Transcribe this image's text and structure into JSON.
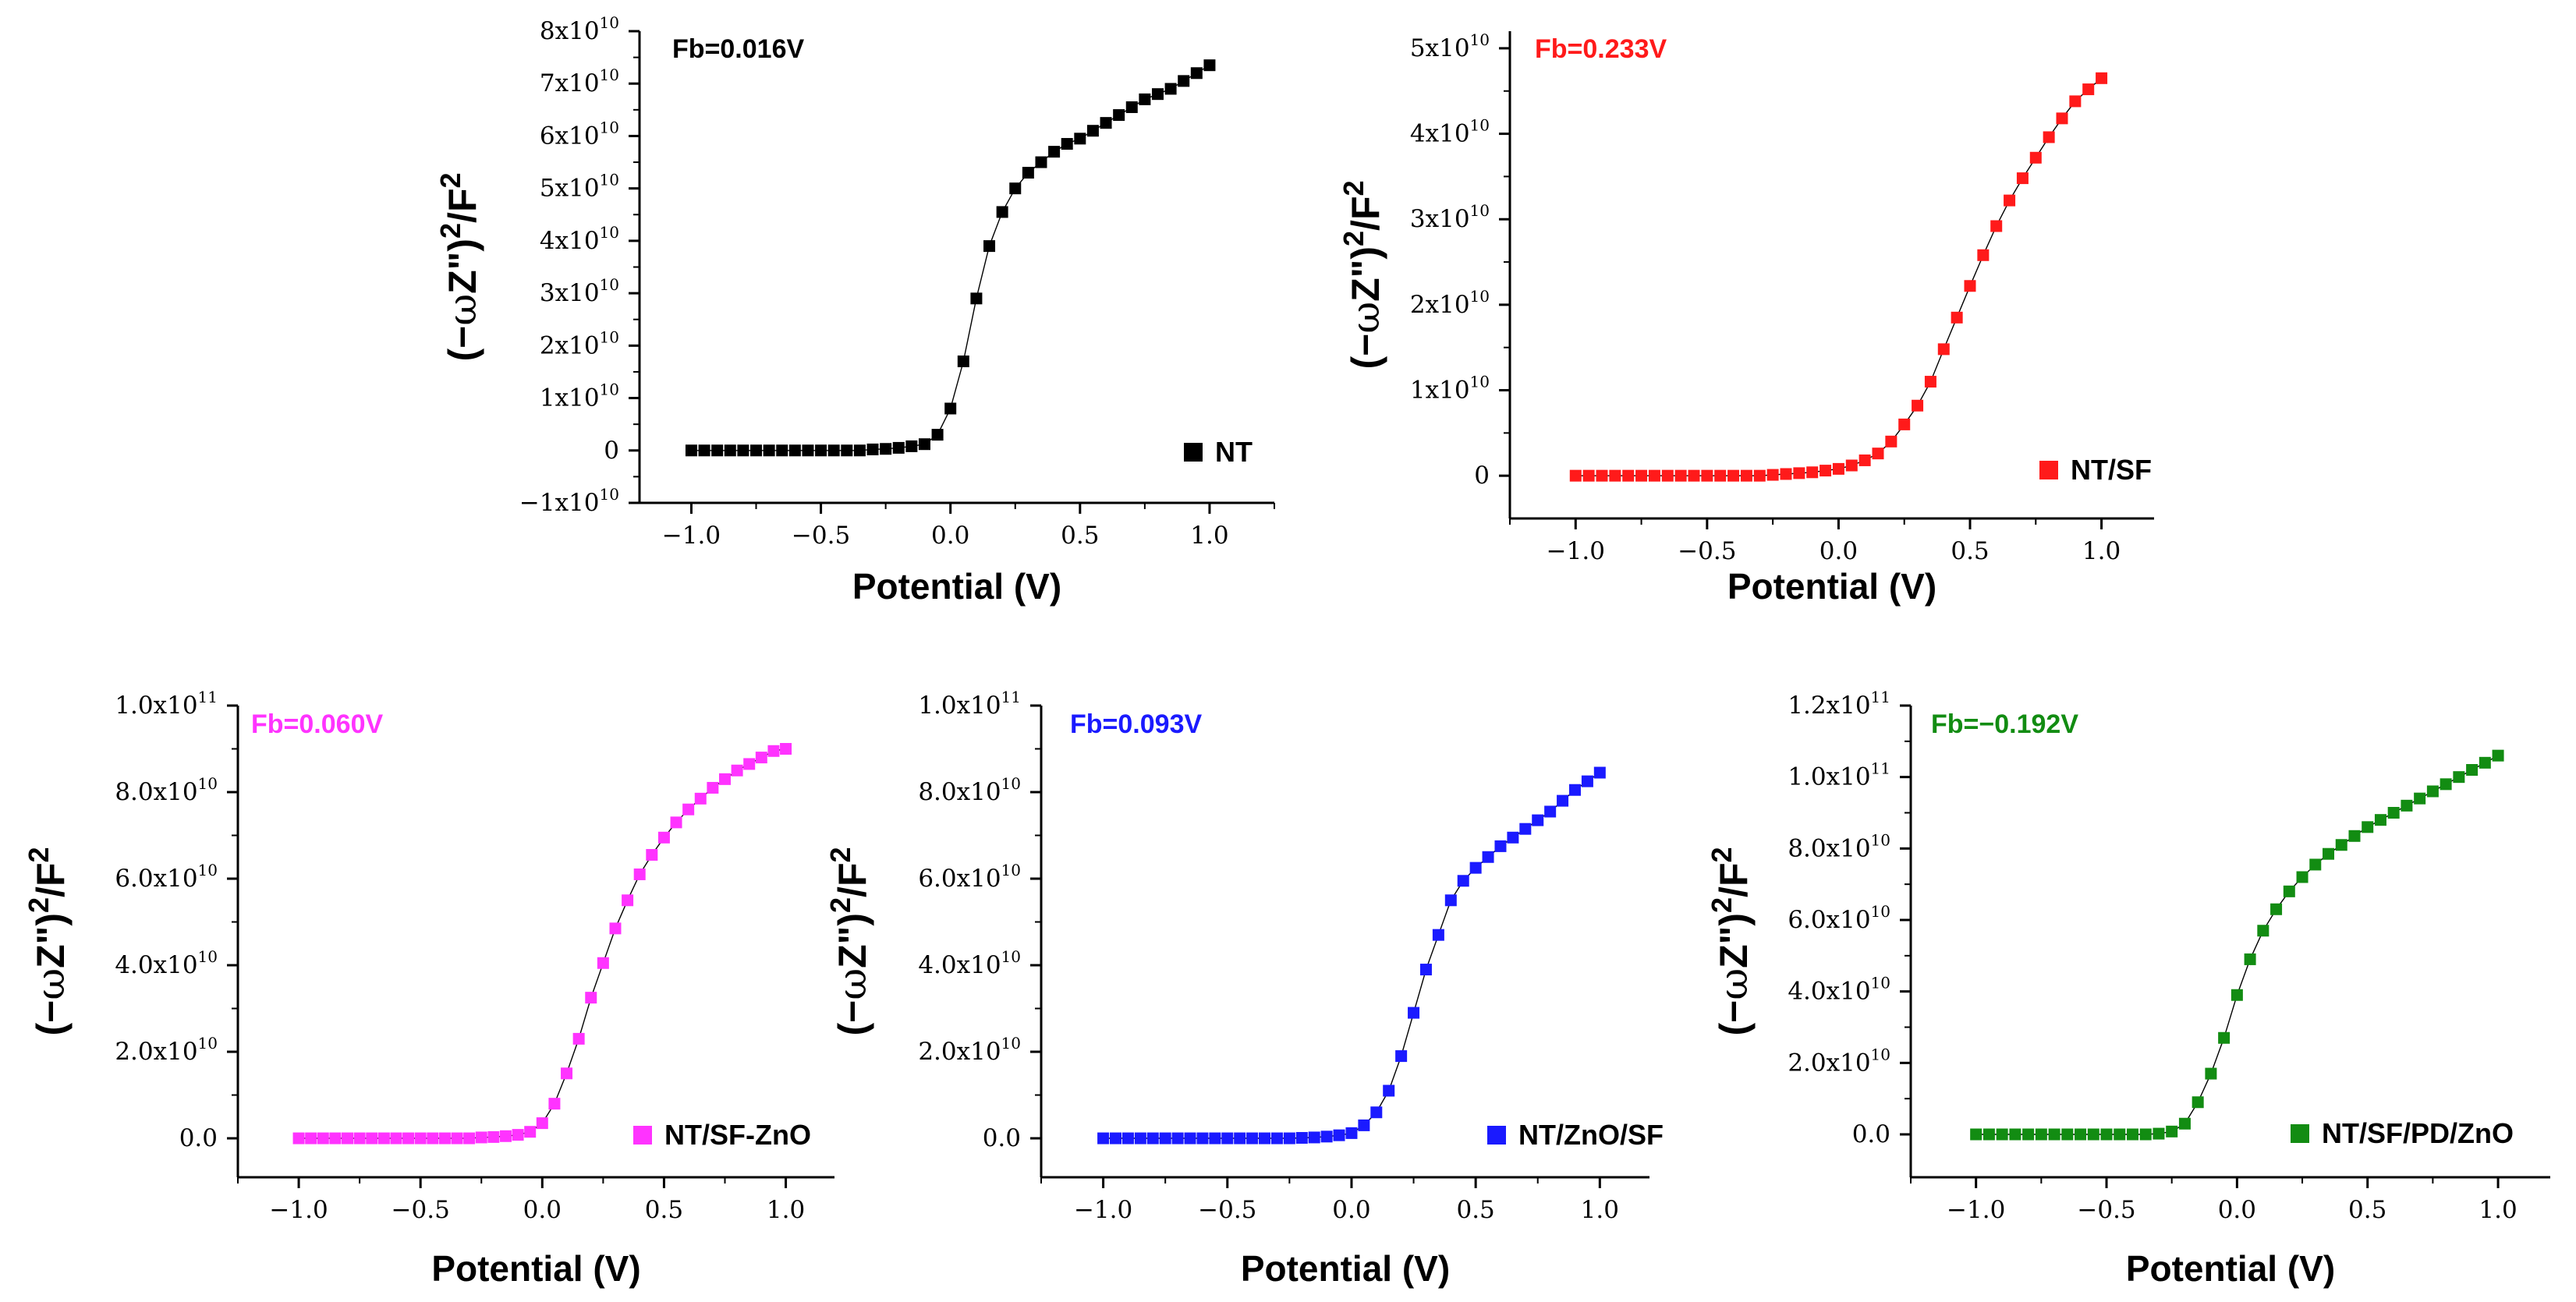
{
  "y_axis_label": {
    "open": "(−",
    "omega": "ω",
    "mid": "Z\")",
    "sup2": "2",
    "slash": "/F",
    "sup3": "2"
  },
  "chart_data": [
    {
      "type": "scatter",
      "series_name": "NT",
      "fb_label": "Fb=0.016V",
      "color": "#000000",
      "xlabel": "Potential (V)",
      "xlim": [
        -1.2,
        1.25
      ],
      "ylim": [
        -10000000000.0,
        80000000000.0
      ],
      "x_ticks": [
        -1.0,
        -0.5,
        0.0,
        0.5,
        1.0
      ],
      "x_tick_labels": [
        "−1.0",
        "−0.5",
        "0.0",
        "0.5",
        "1.0"
      ],
      "y_ticks": [
        {
          "value": -10000000000.0,
          "mantissa": "−1",
          "base": "x10",
          "exp": "10"
        },
        {
          "value": 0,
          "mantissa": "0",
          "base": "",
          "exp": ""
        },
        {
          "value": 10000000000.0,
          "mantissa": "1",
          "base": "x10",
          "exp": "10"
        },
        {
          "value": 20000000000.0,
          "mantissa": "2",
          "base": "x10",
          "exp": "10"
        },
        {
          "value": 30000000000.0,
          "mantissa": "3",
          "base": "x10",
          "exp": "10"
        },
        {
          "value": 40000000000.0,
          "mantissa": "4",
          "base": "x10",
          "exp": "10"
        },
        {
          "value": 50000000000.0,
          "mantissa": "5",
          "base": "x10",
          "exp": "10"
        },
        {
          "value": 60000000000.0,
          "mantissa": "6",
          "base": "x10",
          "exp": "10"
        },
        {
          "value": 70000000000.0,
          "mantissa": "7",
          "base": "x10",
          "exp": "10"
        },
        {
          "value": 80000000000.0,
          "mantissa": "8",
          "base": "x10",
          "exp": "10"
        }
      ],
      "x": [
        -1.0,
        -0.95,
        -0.9,
        -0.85,
        -0.8,
        -0.75,
        -0.7,
        -0.65,
        -0.6,
        -0.55,
        -0.5,
        -0.45,
        -0.4,
        -0.35,
        -0.3,
        -0.25,
        -0.2,
        -0.15,
        -0.1,
        -0.05,
        0.0,
        0.05,
        0.1,
        0.15,
        0.2,
        0.25,
        0.3,
        0.35,
        0.4,
        0.45,
        0.5,
        0.55,
        0.6,
        0.65,
        0.7,
        0.75,
        0.8,
        0.85,
        0.9,
        0.95,
        1.0
      ],
      "y": [
        0,
        0,
        0,
        0,
        0,
        0,
        0,
        0,
        0,
        0,
        0,
        0,
        0,
        0,
        200000000.0,
        300000000.0,
        500000000.0,
        800000000.0,
        1200000000.0,
        3000000000.0,
        8000000000.0,
        17000000000.0,
        29000000000.0,
        39000000000.0,
        45500000000.0,
        50000000000.0,
        53000000000.0,
        55000000000.0,
        57000000000.0,
        58500000000.0,
        59500000000.0,
        61000000000.0,
        62500000000.0,
        64000000000.0,
        65500000000.0,
        67000000000.0,
        68000000000.0,
        69000000000.0,
        70500000000.0,
        72000000000.0,
        73500000000.0
      ]
    },
    {
      "type": "scatter",
      "series_name": "NT/SF",
      "fb_label": "Fb=0.233V",
      "color": "#ff1a1a",
      "xlabel": "Potential (V)",
      "xlim": [
        -1.25,
        1.2
      ],
      "ylim": [
        -5000000000.0,
        52000000000.0
      ],
      "x_ticks": [
        -1.0,
        -0.5,
        0.0,
        0.5,
        1.0
      ],
      "x_tick_labels": [
        "−1.0",
        "−0.5",
        "0.0",
        "0.5",
        "1.0"
      ],
      "y_ticks": [
        {
          "value": 0,
          "mantissa": "0",
          "base": "",
          "exp": ""
        },
        {
          "value": 10000000000.0,
          "mantissa": "1",
          "base": "x10",
          "exp": "10"
        },
        {
          "value": 20000000000.0,
          "mantissa": "2",
          "base": "x10",
          "exp": "10"
        },
        {
          "value": 30000000000.0,
          "mantissa": "3",
          "base": "x10",
          "exp": "10"
        },
        {
          "value": 40000000000.0,
          "mantissa": "4",
          "base": "x10",
          "exp": "10"
        },
        {
          "value": 50000000000.0,
          "mantissa": "5",
          "base": "x10",
          "exp": "10"
        }
      ],
      "x": [
        -1.0,
        -0.95,
        -0.9,
        -0.85,
        -0.8,
        -0.75,
        -0.7,
        -0.65,
        -0.6,
        -0.55,
        -0.5,
        -0.45,
        -0.4,
        -0.35,
        -0.3,
        -0.25,
        -0.2,
        -0.15,
        -0.1,
        -0.05,
        0.0,
        0.05,
        0.1,
        0.15,
        0.2,
        0.25,
        0.3,
        0.35,
        0.4,
        0.45,
        0.5,
        0.55,
        0.6,
        0.65,
        0.7,
        0.75,
        0.8,
        0.85,
        0.9,
        0.95,
        1.0
      ],
      "y": [
        0,
        0,
        0,
        0,
        0,
        0,
        0,
        0,
        0,
        0,
        0,
        0,
        0,
        0,
        0,
        100000000.0,
        200000000.0,
        300000000.0,
        400000000.0,
        600000000.0,
        800000000.0,
        1200000000.0,
        1800000000.0,
        2600000000.0,
        4000000000.0,
        6000000000.0,
        8200000000.0,
        11000000000.0,
        14800000000.0,
        18500000000.0,
        22200000000.0,
        25800000000.0,
        29200000000.0,
        32200000000.0,
        34800000000.0,
        37200000000.0,
        39600000000.0,
        41800000000.0,
        43800000000.0,
        45200000000.0,
        46500000000.0
      ]
    },
    {
      "type": "scatter",
      "series_name": "NT/SF-ZnO",
      "fb_label": "Fb=0.060V",
      "color": "#ff33ff",
      "xlabel": "Potential (V)",
      "xlim": [
        -1.25,
        1.2
      ],
      "ylim": [
        -9000000000.0,
        100000000000.0
      ],
      "x_ticks": [
        -1.0,
        -0.5,
        0.0,
        0.5,
        1.0
      ],
      "x_tick_labels": [
        "−1.0",
        "−0.5",
        "0.0",
        "0.5",
        "1.0"
      ],
      "y_ticks": [
        {
          "value": 0,
          "mantissa": "0.0",
          "base": "",
          "exp": ""
        },
        {
          "value": 20000000000.0,
          "mantissa": "2.0",
          "base": "x10",
          "exp": "10"
        },
        {
          "value": 40000000000.0,
          "mantissa": "4.0",
          "base": "x10",
          "exp": "10"
        },
        {
          "value": 60000000000.0,
          "mantissa": "6.0",
          "base": "x10",
          "exp": "10"
        },
        {
          "value": 80000000000.0,
          "mantissa": "8.0",
          "base": "x10",
          "exp": "10"
        },
        {
          "value": 100000000000.0,
          "mantissa": "1.0",
          "base": "x10",
          "exp": "11"
        }
      ],
      "x": [
        -1.0,
        -0.95,
        -0.9,
        -0.85,
        -0.8,
        -0.75,
        -0.7,
        -0.65,
        -0.6,
        -0.55,
        -0.5,
        -0.45,
        -0.4,
        -0.35,
        -0.3,
        -0.25,
        -0.2,
        -0.15,
        -0.1,
        -0.05,
        0.0,
        0.05,
        0.1,
        0.15,
        0.2,
        0.25,
        0.3,
        0.35,
        0.4,
        0.45,
        0.5,
        0.55,
        0.6,
        0.65,
        0.7,
        0.75,
        0.8,
        0.85,
        0.9,
        0.95,
        1.0
      ],
      "y": [
        0,
        0,
        0,
        0,
        0,
        0,
        0,
        0,
        0,
        0,
        0,
        0,
        0,
        0,
        0,
        200000000.0,
        300000000.0,
        500000000.0,
        800000000.0,
        1500000000.0,
        3500000000.0,
        8000000000.0,
        15000000000.0,
        23000000000.0,
        32500000000.0,
        40500000000.0,
        48500000000.0,
        55000000000.0,
        61000000000.0,
        65500000000.0,
        69500000000.0,
        73000000000.0,
        76000000000.0,
        78500000000.0,
        81000000000.0,
        83000000000.0,
        85000000000.0,
        86500000000.0,
        88000000000.0,
        89500000000.0,
        90000000000.0
      ]
    },
    {
      "type": "scatter",
      "series_name": "NT/ZnO/SF",
      "fb_label": "Fb=0.093V",
      "color": "#1a1aff",
      "xlabel": "Potential (V)",
      "xlim": [
        -1.25,
        1.2
      ],
      "ylim": [
        -9000000000.0,
        100000000000.0
      ],
      "x_ticks": [
        -1.0,
        -0.5,
        0.0,
        0.5,
        1.0
      ],
      "x_tick_labels": [
        "−1.0",
        "−0.5",
        "0.0",
        "0.5",
        "1.0"
      ],
      "y_ticks": [
        {
          "value": 0,
          "mantissa": "0.0",
          "base": "",
          "exp": ""
        },
        {
          "value": 20000000000.0,
          "mantissa": "2.0",
          "base": "x10",
          "exp": "10"
        },
        {
          "value": 40000000000.0,
          "mantissa": "4.0",
          "base": "x10",
          "exp": "10"
        },
        {
          "value": 60000000000.0,
          "mantissa": "6.0",
          "base": "x10",
          "exp": "10"
        },
        {
          "value": 80000000000.0,
          "mantissa": "8.0",
          "base": "x10",
          "exp": "10"
        },
        {
          "value": 100000000000.0,
          "mantissa": "1.0",
          "base": "x10",
          "exp": "11"
        }
      ],
      "x": [
        -1.0,
        -0.95,
        -0.9,
        -0.85,
        -0.8,
        -0.75,
        -0.7,
        -0.65,
        -0.6,
        -0.55,
        -0.5,
        -0.45,
        -0.4,
        -0.35,
        -0.3,
        -0.25,
        -0.2,
        -0.15,
        -0.1,
        -0.05,
        0.0,
        0.05,
        0.1,
        0.15,
        0.2,
        0.25,
        0.3,
        0.35,
        0.4,
        0.45,
        0.5,
        0.55,
        0.6,
        0.65,
        0.7,
        0.75,
        0.8,
        0.85,
        0.9,
        0.95,
        1.0
      ],
      "y": [
        0,
        0,
        0,
        0,
        0,
        0,
        0,
        0,
        0,
        0,
        0,
        0,
        0,
        0,
        0,
        0,
        100000000.0,
        200000000.0,
        400000000.0,
        700000000.0,
        1200000000.0,
        3000000000.0,
        6000000000.0,
        11000000000.0,
        19000000000.0,
        29000000000.0,
        39000000000.0,
        47000000000.0,
        55000000000.0,
        59500000000.0,
        62500000000.0,
        65000000000.0,
        67500000000.0,
        69500000000.0,
        71500000000.0,
        73500000000.0,
        75500000000.0,
        78000000000.0,
        80500000000.0,
        82500000000.0,
        84500000000.0
      ]
    },
    {
      "type": "scatter",
      "series_name": "NT/SF/PD/ZnO",
      "fb_label": "Fb=−0.192V",
      "color": "#128c12",
      "xlabel": "Potential (V)",
      "xlim": [
        -1.25,
        1.2
      ],
      "ylim": [
        -12000000000.0,
        120000000000.0
      ],
      "x_ticks": [
        -1.0,
        -0.5,
        0.0,
        0.5,
        1.0
      ],
      "x_tick_labels": [
        "−1.0",
        "−0.5",
        "0.0",
        "0.5",
        "1.0"
      ],
      "y_ticks": [
        {
          "value": 0,
          "mantissa": "0.0",
          "base": "",
          "exp": ""
        },
        {
          "value": 20000000000.0,
          "mantissa": "2.0",
          "base": "x10",
          "exp": "10"
        },
        {
          "value": 40000000000.0,
          "mantissa": "4.0",
          "base": "x10",
          "exp": "10"
        },
        {
          "value": 60000000000.0,
          "mantissa": "6.0",
          "base": "x10",
          "exp": "10"
        },
        {
          "value": 80000000000.0,
          "mantissa": "8.0",
          "base": "x10",
          "exp": "10"
        },
        {
          "value": 100000000000.0,
          "mantissa": "1.0",
          "base": "x10",
          "exp": "11"
        },
        {
          "value": 120000000000.0,
          "mantissa": "1.2",
          "base": "x10",
          "exp": "11"
        }
      ],
      "x": [
        -1.0,
        -0.95,
        -0.9,
        -0.85,
        -0.8,
        -0.75,
        -0.7,
        -0.65,
        -0.6,
        -0.55,
        -0.5,
        -0.45,
        -0.4,
        -0.35,
        -0.3,
        -0.25,
        -0.2,
        -0.15,
        -0.1,
        -0.05,
        0.0,
        0.05,
        0.1,
        0.15,
        0.2,
        0.25,
        0.3,
        0.35,
        0.4,
        0.45,
        0.5,
        0.55,
        0.6,
        0.65,
        0.7,
        0.75,
        0.8,
        0.85,
        0.9,
        0.95,
        1.0
      ],
      "y": [
        0,
        0,
        0,
        0,
        0,
        0,
        0,
        0,
        0,
        0,
        0,
        0,
        0,
        0,
        200000000.0,
        800000000.0,
        3000000000.0,
        9000000000.0,
        17000000000.0,
        27000000000.0,
        39000000000.0,
        49000000000.0,
        57000000000.0,
        63000000000.0,
        68000000000.0,
        72000000000.0,
        75500000000.0,
        78500000000.0,
        81000000000.0,
        83500000000.0,
        86000000000.0,
        88000000000.0,
        90000000000.0,
        92000000000.0,
        94000000000.0,
        96000000000.0,
        98000000000.0,
        100000000000.0,
        102000000000.0,
        104000000000.0,
        106000000000.0
      ]
    }
  ]
}
